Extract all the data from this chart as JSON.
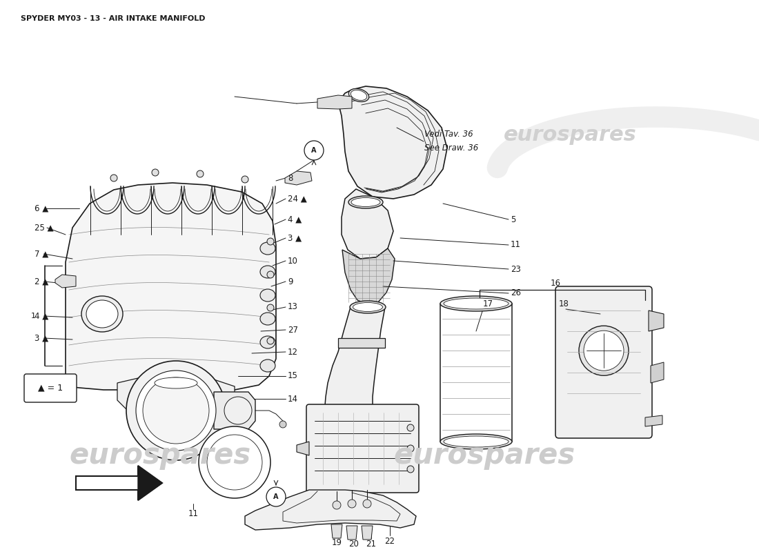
{
  "title": "SPYDER MY03 - 13 - AIR INTAKE MANIFOLD",
  "bg_color": "#ffffff",
  "line_color": "#1a1a1a",
  "vedi_text": "Vedi Tav. 36",
  "see_text": "See Draw. 36",
  "legend_text": "▲ = 1",
  "watermark_text": "eurospares"
}
